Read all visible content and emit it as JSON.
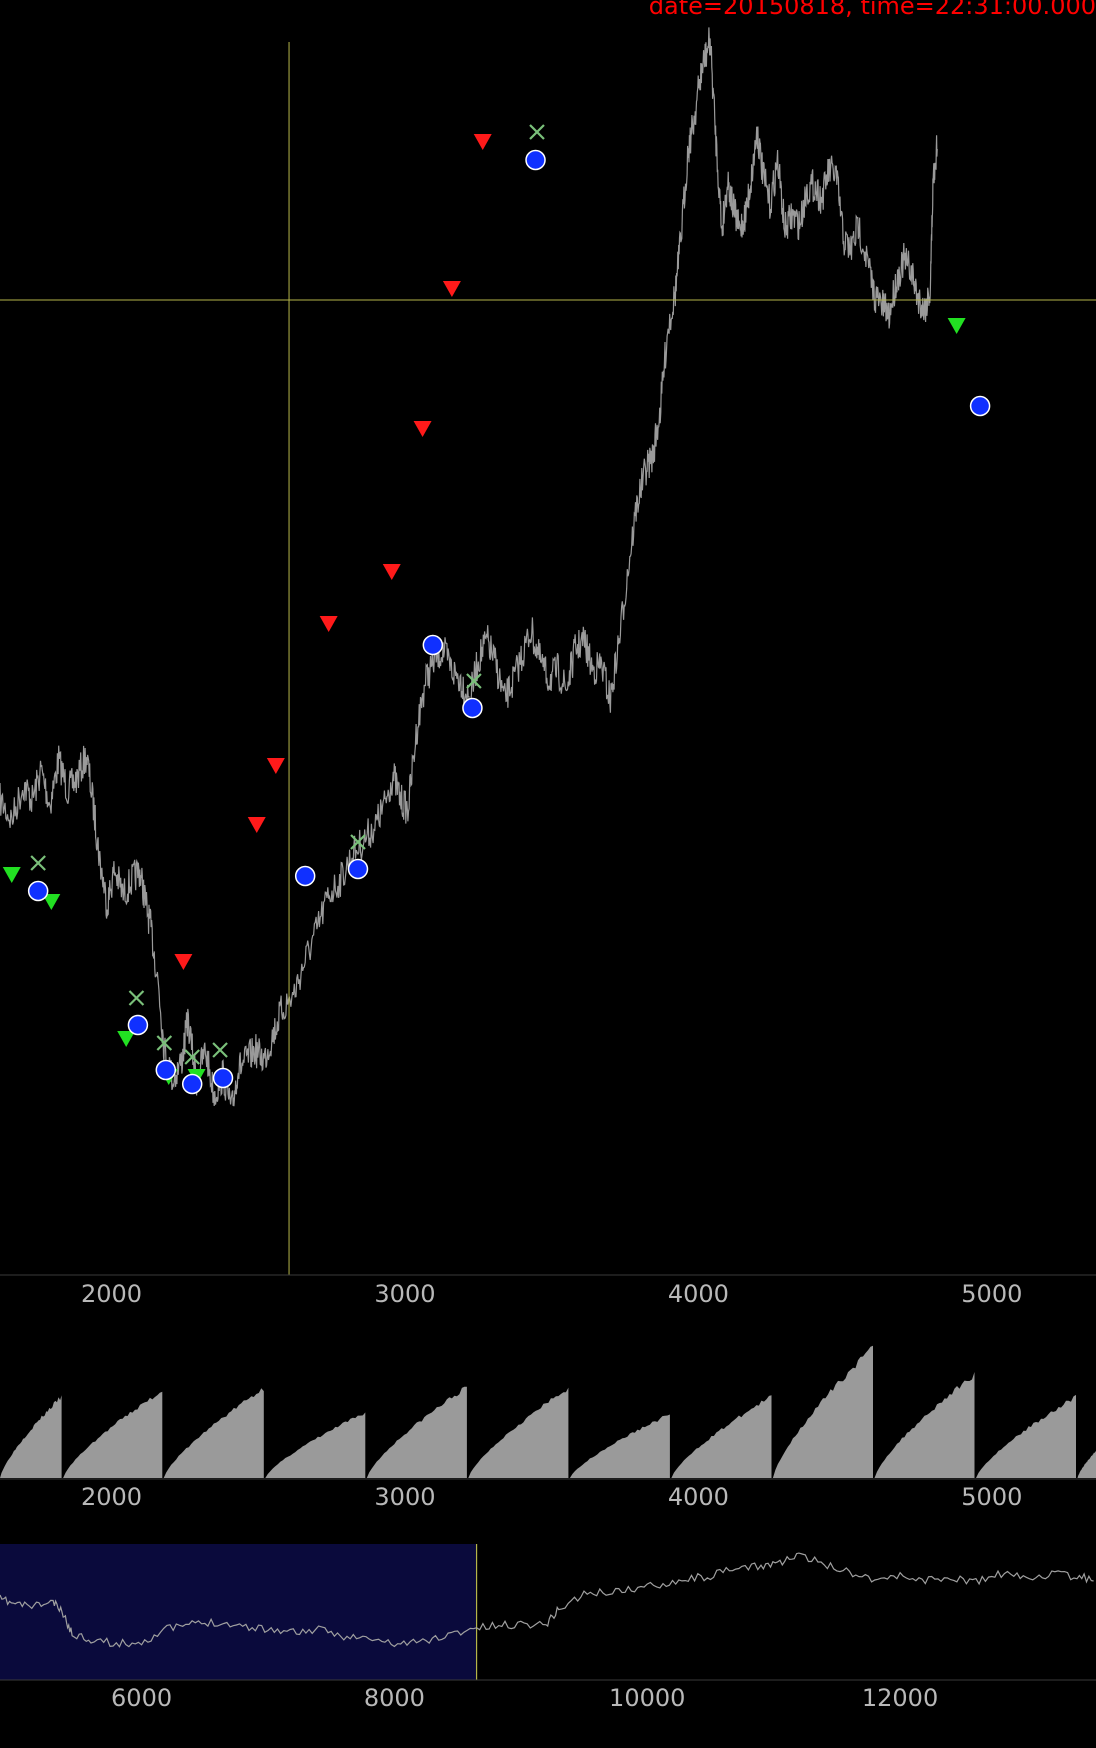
{
  "status_text": "date=20150818, time=22:31:00.000",
  "colors": {
    "background": "#000000",
    "price_line": "#9a9a9a",
    "crosshair": "#b5b54a",
    "sell_marker": "#ff1a1a",
    "buy_marker": "#22e022",
    "fill_marker": "#1030ff",
    "exit_marker": "#7ac07a",
    "volume_fill": "#9a9a9a",
    "overview_highlight": "#0a0a3c",
    "overview_line": "#a0a0a0",
    "tick_text": "#b8b8b8",
    "status_text": "#ff0000"
  },
  "chart_data": [
    {
      "type": "line",
      "panel": "price",
      "xlim": [
        1620,
        5355
      ],
      "x_ticks": [
        "2000",
        "3000",
        "4000",
        "5000"
      ],
      "series": [
        {
          "points": [
            [
              1620,
              800
            ],
            [
              1660,
              820
            ],
            [
              1700,
              785
            ],
            [
              1730,
              800
            ],
            [
              1760,
              770
            ],
            [
              1790,
              805
            ],
            [
              1820,
              760
            ],
            [
              1850,
              790
            ],
            [
              1880,
              780
            ],
            [
              1915,
              755
            ],
            [
              1940,
              810
            ],
            [
              1960,
              860
            ],
            [
              1985,
              905
            ],
            [
              2010,
              870
            ],
            [
              2040,
              895
            ],
            [
              2070,
              880
            ],
            [
              2095,
              870
            ],
            [
              2115,
              900
            ],
            [
              2135,
              930
            ],
            [
              2160,
              985
            ],
            [
              2180,
              1050
            ],
            [
              2210,
              1080
            ],
            [
              2240,
              1060
            ],
            [
              2260,
              1020
            ],
            [
              2290,
              1080
            ],
            [
              2320,
              1050
            ],
            [
              2350,
              1095
            ],
            [
              2380,
              1075
            ],
            [
              2410,
              1110
            ],
            [
              2430,
              1070
            ],
            [
              2460,
              1060
            ],
            [
              2490,
              1050
            ],
            [
              2520,
              1060
            ],
            [
              2550,
              1035
            ],
            [
              2580,
              1010
            ],
            [
              2620,
              995
            ],
            [
              2660,
              960
            ],
            [
              2700,
              930
            ],
            [
              2740,
              895
            ],
            [
              2780,
              880
            ],
            [
              2820,
              855
            ],
            [
              2860,
              840
            ],
            [
              2900,
              825
            ],
            [
              2930,
              805
            ],
            [
              2960,
              775
            ],
            [
              2985,
              800
            ],
            [
              3010,
              810
            ],
            [
              3040,
              730
            ],
            [
              3070,
              680
            ],
            [
              3100,
              660
            ],
            [
              3130,
              650
            ],
            [
              3160,
              670
            ],
            [
              3190,
              680
            ],
            [
              3220,
              700
            ],
            [
              3250,
              660
            ],
            [
              3280,
              640
            ],
            [
              3310,
              665
            ],
            [
              3340,
              700
            ],
            [
              3370,
              680
            ],
            [
              3400,
              655
            ],
            [
              3430,
              630
            ],
            [
              3460,
              660
            ],
            [
              3490,
              680
            ],
            [
              3520,
              670
            ],
            [
              3550,
              690
            ],
            [
              3580,
              650
            ],
            [
              3610,
              640
            ],
            [
              3640,
              670
            ],
            [
              3670,
              665
            ],
            [
              3700,
              700
            ],
            [
              3730,
              640
            ],
            [
              3760,
              570
            ],
            [
              3790,
              505
            ],
            [
              3820,
              470
            ],
            [
              3845,
              455
            ],
            [
              3870,
              410
            ],
            [
              3895,
              330
            ],
            [
              3920,
              295
            ],
            [
              3940,
              240
            ],
            [
              3965,
              150
            ],
            [
              3985,
              120
            ],
            [
              4005,
              80
            ],
            [
              4020,
              60
            ],
            [
              4040,
              40
            ],
            [
              4060,
              140
            ],
            [
              4080,
              230
            ],
            [
              4100,
              180
            ],
            [
              4120,
              210
            ],
            [
              4140,
              230
            ],
            [
              4160,
              215
            ],
            [
              4180,
              180
            ],
            [
              4200,
              130
            ],
            [
              4220,
              175
            ],
            [
              4245,
              205
            ],
            [
              4270,
              160
            ],
            [
              4295,
              230
            ],
            [
              4320,
              215
            ],
            [
              4345,
              225
            ],
            [
              4370,
              190
            ],
            [
              4395,
              185
            ],
            [
              4420,
              200
            ],
            [
              4445,
              170
            ],
            [
              4470,
              175
            ],
            [
              4495,
              240
            ],
            [
              4520,
              250
            ],
            [
              4545,
              225
            ],
            [
              4575,
              260
            ],
            [
              4600,
              295
            ],
            [
              4625,
              305
            ],
            [
              4650,
              315
            ],
            [
              4675,
              280
            ],
            [
              4700,
              260
            ],
            [
              4725,
              270
            ],
            [
              4745,
              295
            ],
            [
              4770,
              310
            ],
            [
              4790,
              290
            ],
            [
              4800,
              180
            ],
            [
              4815,
              140
            ]
          ]
        }
      ],
      "sell_signals": [
        [
          2245,
          963
        ],
        [
          2495,
          826
        ],
        [
          2560,
          767
        ],
        [
          2740,
          625
        ],
        [
          2955,
          573
        ],
        [
          3060,
          430
        ],
        [
          3160,
          290
        ],
        [
          3265,
          143
        ]
      ],
      "buy_signals": [
        [
          1660,
          876
        ],
        [
          1795,
          903
        ],
        [
          2050,
          1040
        ],
        [
          2195,
          1078
        ],
        [
          2290,
          1078
        ],
        [
          4880,
          327
        ]
      ],
      "fills": [
        [
          1750,
          891
        ],
        [
          2090,
          1025
        ],
        [
          2185,
          1070
        ],
        [
          2275,
          1084
        ],
        [
          2380,
          1078
        ],
        [
          2660,
          876
        ],
        [
          2840,
          869
        ],
        [
          3095,
          645
        ],
        [
          3230,
          708
        ],
        [
          3445,
          160
        ],
        [
          4960,
          406
        ]
      ],
      "exits": [
        [
          1750,
          863
        ],
        [
          2085,
          998
        ],
        [
          2180,
          1043
        ],
        [
          2275,
          1057
        ],
        [
          2370,
          1050
        ],
        [
          2840,
          842
        ],
        [
          3235,
          681
        ],
        [
          3450,
          132
        ]
      ],
      "crosshair": {
        "x": 2605,
        "y": 300
      }
    },
    {
      "type": "area",
      "panel": "volume",
      "xlim": [
        1620,
        5355
      ],
      "x_ticks": [
        "2000",
        "3000",
        "4000",
        "5000"
      ],
      "segments": [
        {
          "x0": 1620,
          "x1": 1830,
          "peak": 0.6
        },
        {
          "x0": 1835,
          "x1": 2173,
          "peak": 0.64
        },
        {
          "x0": 2178,
          "x1": 2519,
          "peak": 0.66
        },
        {
          "x0": 2524,
          "x1": 2865,
          "peak": 0.48
        },
        {
          "x0": 2870,
          "x1": 3211,
          "peak": 0.67
        },
        {
          "x0": 3216,
          "x1": 3557,
          "peak": 0.66
        },
        {
          "x0": 3562,
          "x1": 3903,
          "peak": 0.47
        },
        {
          "x0": 3908,
          "x1": 4249,
          "peak": 0.6
        },
        {
          "x0": 4254,
          "x1": 4595,
          "peak": 0.96
        },
        {
          "x0": 4600,
          "x1": 4941,
          "peak": 0.76
        },
        {
          "x0": 4946,
          "x1": 5287,
          "peak": 0.6
        },
        {
          "x0": 5292,
          "x1": 5355,
          "peak": 0.2
        }
      ]
    },
    {
      "type": "line",
      "panel": "overview",
      "xlim": [
        4880,
        13550
      ],
      "x_ticks": [
        "6000",
        "8000",
        "10000",
        "12000"
      ],
      "highlight_range": [
        4880,
        8650
      ],
      "series": [
        {
          "points": [
            [
              4880,
              55
            ],
            [
              5000,
              60
            ],
            [
              5150,
              62
            ],
            [
              5300,
              58
            ],
            [
              5380,
              70
            ],
            [
              5450,
              90
            ],
            [
              5600,
              95
            ],
            [
              5800,
              100
            ],
            [
              6000,
              98
            ],
            [
              6200,
              85
            ],
            [
              6400,
              80
            ],
            [
              6600,
              78
            ],
            [
              6800,
              82
            ],
            [
              7000,
              85
            ],
            [
              7200,
              88
            ],
            [
              7400,
              86
            ],
            [
              7600,
              92
            ],
            [
              7800,
              95
            ],
            [
              8000,
              100
            ],
            [
              8200,
              98
            ],
            [
              8400,
              92
            ],
            [
              8600,
              85
            ],
            [
              8800,
              82
            ],
            [
              9000,
              80
            ],
            [
              9200,
              80
            ],
            [
              9300,
              65
            ],
            [
              9500,
              50
            ],
            [
              9700,
              48
            ],
            [
              9900,
              45
            ],
            [
              10100,
              40
            ],
            [
              10300,
              35
            ],
            [
              10500,
              32
            ],
            [
              10700,
              25
            ],
            [
              10900,
              22
            ],
            [
              11050,
              18
            ],
            [
              11200,
              12
            ],
            [
              11400,
              20
            ],
            [
              11600,
              28
            ],
            [
              11800,
              35
            ],
            [
              12000,
              32
            ],
            [
              12200,
              36
            ],
            [
              12400,
              34
            ],
            [
              12600,
              38
            ],
            [
              12800,
              30
            ],
            [
              13000,
              34
            ],
            [
              13200,
              30
            ],
            [
              13400,
              33
            ],
            [
              13550,
              35
            ]
          ]
        }
      ]
    }
  ]
}
